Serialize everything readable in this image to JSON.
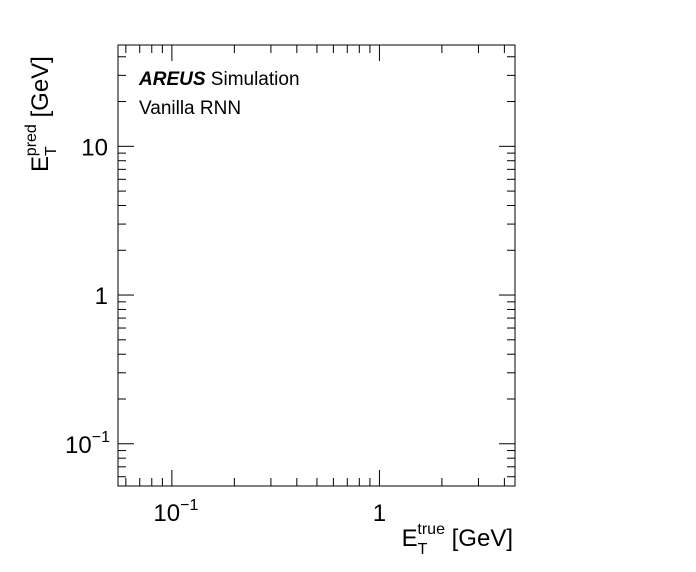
{
  "chart_data": {
    "type": "scatter",
    "title": "",
    "xlabel": {
      "base": "E",
      "sub": "T",
      "sup": "true",
      "unit": " [GeV]"
    },
    "ylabel": {
      "base": "E",
      "sub": "T",
      "sup": "pred",
      "unit": " [GeV]"
    },
    "xscale": "log",
    "yscale": "log",
    "xlim": [
      0.055,
      4.5
    ],
    "ylim": [
      0.052,
      48
    ],
    "x_ticks": [
      {
        "value": 0.1,
        "mantissa": "10",
        "exponent": "−1"
      },
      {
        "value": 1,
        "mantissa": "1",
        "exponent": ""
      }
    ],
    "y_ticks": [
      {
        "value": 0.1,
        "mantissa": "10",
        "exponent": "−1"
      },
      {
        "value": 1,
        "mantissa": "1",
        "exponent": ""
      },
      {
        "value": 10,
        "mantissa": "10",
        "exponent": ""
      }
    ],
    "series": [],
    "grid": false,
    "annotations": {
      "experiment": "AREUS",
      "status": "Simulation",
      "model": "Vanilla RNN"
    }
  }
}
